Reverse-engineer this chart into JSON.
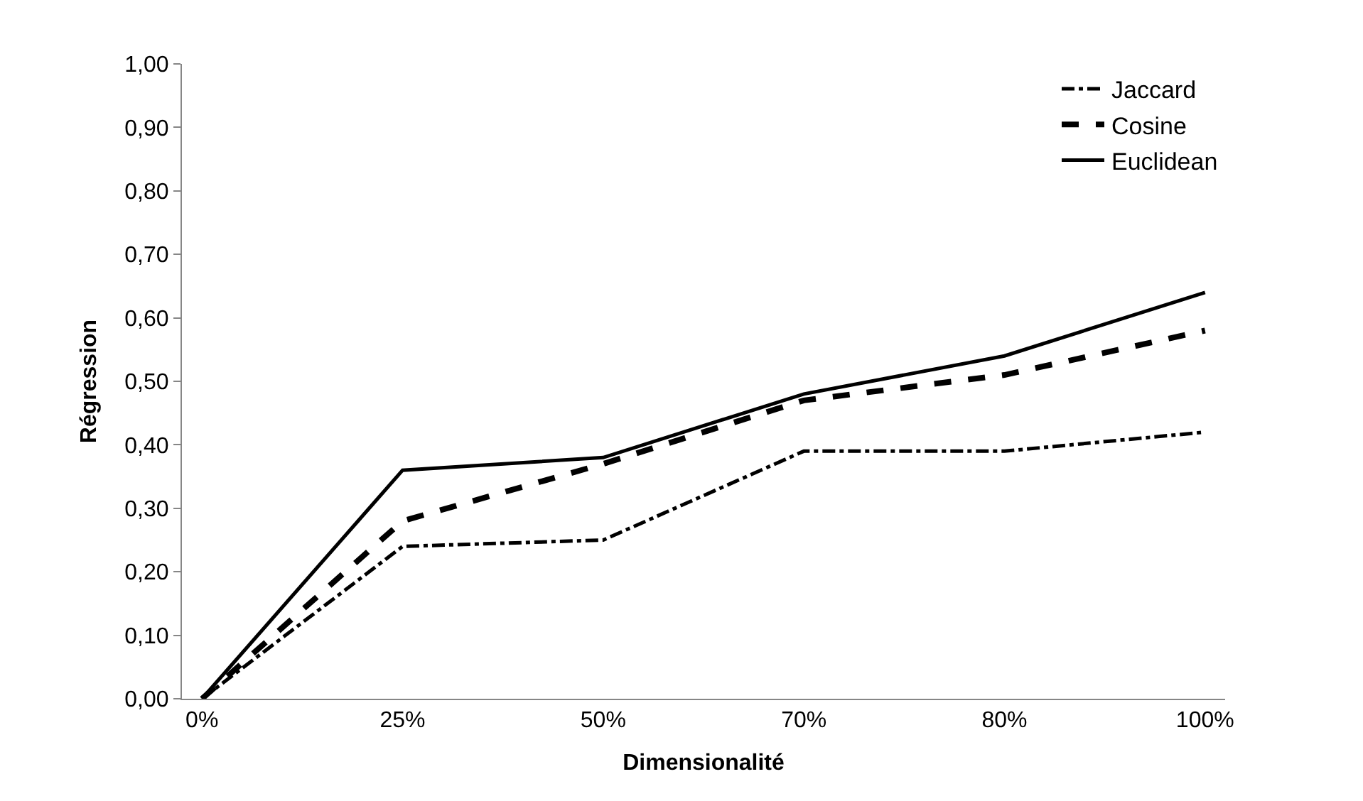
{
  "chart_data": {
    "type": "line",
    "xlabel": "Dimensionalité",
    "ylabel": "Régression",
    "categories": [
      "0%",
      "25%",
      "50%",
      "70%",
      "80%",
      "100%"
    ],
    "series": [
      {
        "name": "Jaccard",
        "color": "#000000",
        "line_style": "dashdot",
        "values": [
          0,
          0.24,
          0.25,
          0.39,
          0.39,
          0.42
        ]
      },
      {
        "name": "Cosine",
        "color": "#000000",
        "line_style": "dashed",
        "values": [
          0,
          0.28,
          0.37,
          0.47,
          0.51,
          0.58
        ]
      },
      {
        "name": "Euclidean",
        "color": "#000000",
        "line_style": "solid",
        "values": [
          0,
          0.36,
          0.38,
          0.48,
          0.54,
          0.64
        ]
      }
    ],
    "ylim": [
      0,
      1
    ],
    "yticks": [
      {
        "value": 0,
        "label": "0,00"
      },
      {
        "value": 0.1,
        "label": "0,10"
      },
      {
        "value": 0.2,
        "label": "0,20"
      },
      {
        "value": 0.3,
        "label": "0,30"
      },
      {
        "value": 0.4,
        "label": "0,40"
      },
      {
        "value": 0.5,
        "label": "0,50"
      },
      {
        "value": 0.6,
        "label": "0,60"
      },
      {
        "value": 0.7,
        "label": "0,70"
      },
      {
        "value": 0.8,
        "label": "0,80"
      },
      {
        "value": 0.9,
        "label": "0,90"
      },
      {
        "value": 1,
        "label": "1,00"
      }
    ],
    "grid": false,
    "legend": "top right",
    "marker": "none"
  }
}
